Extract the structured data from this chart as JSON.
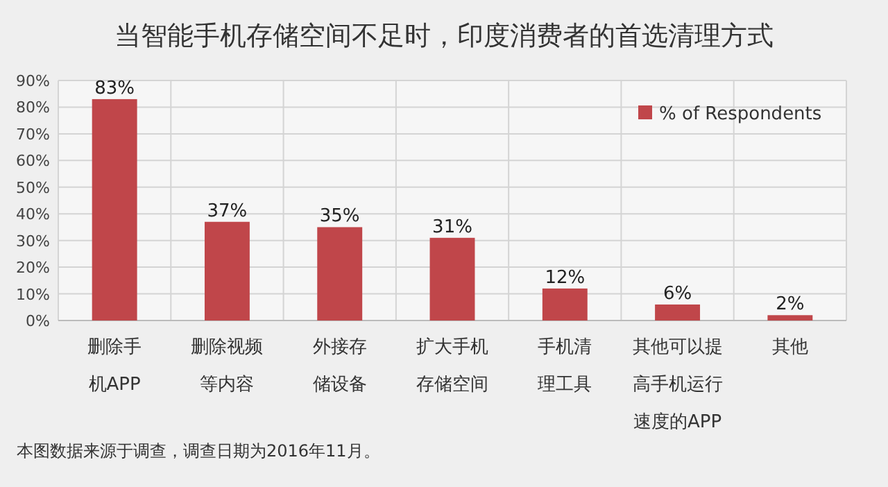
{
  "chart_data": {
    "type": "bar",
    "title": "当智能手机存储空间不足时，印度消费者的首选清理方式",
    "categories": [
      "删除手机APP",
      "删除视频等内容",
      "外接存储设备",
      "扩大手机存储空间",
      "手机清理工具",
      "其他可以提高手机运行速度的APP",
      "其他"
    ],
    "series": [
      {
        "name": "% of Respondents",
        "color": "#c0464a",
        "values": [
          83,
          37,
          35,
          31,
          12,
          6,
          2
        ]
      }
    ],
    "value_labels": [
      "83%",
      "37%",
      "35%",
      "31%",
      "12%",
      "6%",
      "2%"
    ],
    "ylim": [
      0,
      90
    ],
    "yticks": [
      {
        "value": 0,
        "label": "0%"
      },
      {
        "value": 10,
        "label": "10%"
      },
      {
        "value": 20,
        "label": "20%"
      },
      {
        "value": 30,
        "label": "30%"
      },
      {
        "value": 40,
        "label": "40%"
      },
      {
        "value": 50,
        "label": "50%"
      },
      {
        "value": 60,
        "label": "60%"
      },
      {
        "value": 70,
        "label": "70%"
      },
      {
        "value": 80,
        "label": "80%"
      },
      {
        "value": 90,
        "label": "90%"
      }
    ],
    "grid": true,
    "legend": "top right",
    "annotations": [
      "本图数据来源于调查，调查日期为2016年11月。"
    ]
  }
}
